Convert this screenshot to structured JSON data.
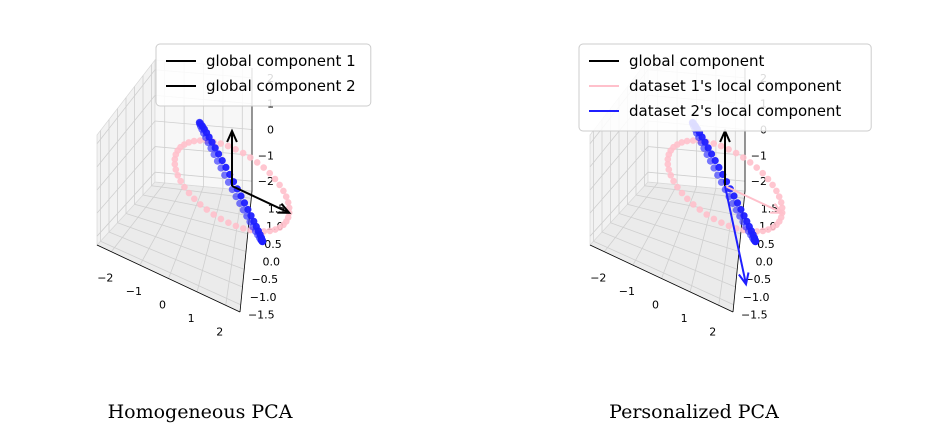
{
  "chart_data": [
    {
      "type": "scatter",
      "projection": "3d",
      "caption": "Homogeneous PCA",
      "ticks": {
        "x": [
          "−2",
          "−1",
          "0",
          "1",
          "2"
        ],
        "y": [
          "−1.5",
          "−1.0",
          "−0.5",
          "0.0",
          "0.5",
          "1.0",
          "1.5"
        ],
        "z": [
          "−2",
          "−1",
          "0",
          "1",
          "2"
        ]
      },
      "legend": {
        "placement": "top",
        "entries": [
          {
            "label": "global component 1",
            "color": "#000000"
          },
          {
            "label": "global component 2",
            "color": "#000000"
          }
        ]
      },
      "series": [
        {
          "color": "#ffc0cb",
          "shape": "horizontal ellipse",
          "x_range": [
            -2,
            2
          ],
          "y_range": [
            -1,
            1
          ],
          "z": 0
        },
        {
          "color": "#1f1fff",
          "shape": "tilted ellipse",
          "x_range": [
            -1,
            1
          ],
          "y_range": [
            -1.5,
            1.5
          ],
          "z_range": [
            -1.5,
            1.5
          ]
        }
      ],
      "arrows": [
        {
          "color": "#000000",
          "from": [
            0,
            0,
            0
          ],
          "to": [
            0,
            0,
            2
          ]
        },
        {
          "color": "#000000",
          "from": [
            0,
            0,
            0
          ],
          "to": [
            2,
            0,
            0
          ]
        }
      ],
      "grid": true
    },
    {
      "type": "scatter",
      "projection": "3d",
      "caption": "Personalized PCA",
      "ticks": {
        "x": [
          "−2",
          "−1",
          "0",
          "1",
          "2"
        ],
        "y": [
          "−1.5",
          "−1.0",
          "−0.5",
          "0.0",
          "0.5",
          "1.0",
          "1.5"
        ],
        "z": [
          "−2",
          "−1",
          "0",
          "1",
          "2"
        ]
      },
      "legend": {
        "placement": "top",
        "entries": [
          {
            "label": "global component",
            "color": "#000000"
          },
          {
            "label": "dataset 1's local component",
            "color": "#ffc0cb"
          },
          {
            "label": "dataset 2's local component",
            "color": "#1f1fff"
          }
        ]
      },
      "series": [
        {
          "color": "#ffc0cb",
          "shape": "horizontal ellipse",
          "x_range": [
            -2,
            2
          ],
          "y_range": [
            -1,
            1
          ],
          "z": 0
        },
        {
          "color": "#1f1fff",
          "shape": "tilted ellipse",
          "x_range": [
            -1,
            1
          ],
          "y_range": [
            -1.5,
            1.5
          ],
          "z_range": [
            -1.5,
            1.5
          ]
        }
      ],
      "arrows": [
        {
          "color": "#000000",
          "from": [
            0,
            0,
            0
          ],
          "to": [
            0,
            0,
            2
          ]
        },
        {
          "color": "#ffc0cb",
          "from": [
            0,
            0,
            0
          ],
          "to": [
            2,
            0,
            0
          ]
        },
        {
          "color": "#1f1fff",
          "from": [
            0,
            0,
            0
          ],
          "to": [
            0.9,
            -1.3,
            -1.4
          ]
        }
      ],
      "grid": true
    }
  ]
}
